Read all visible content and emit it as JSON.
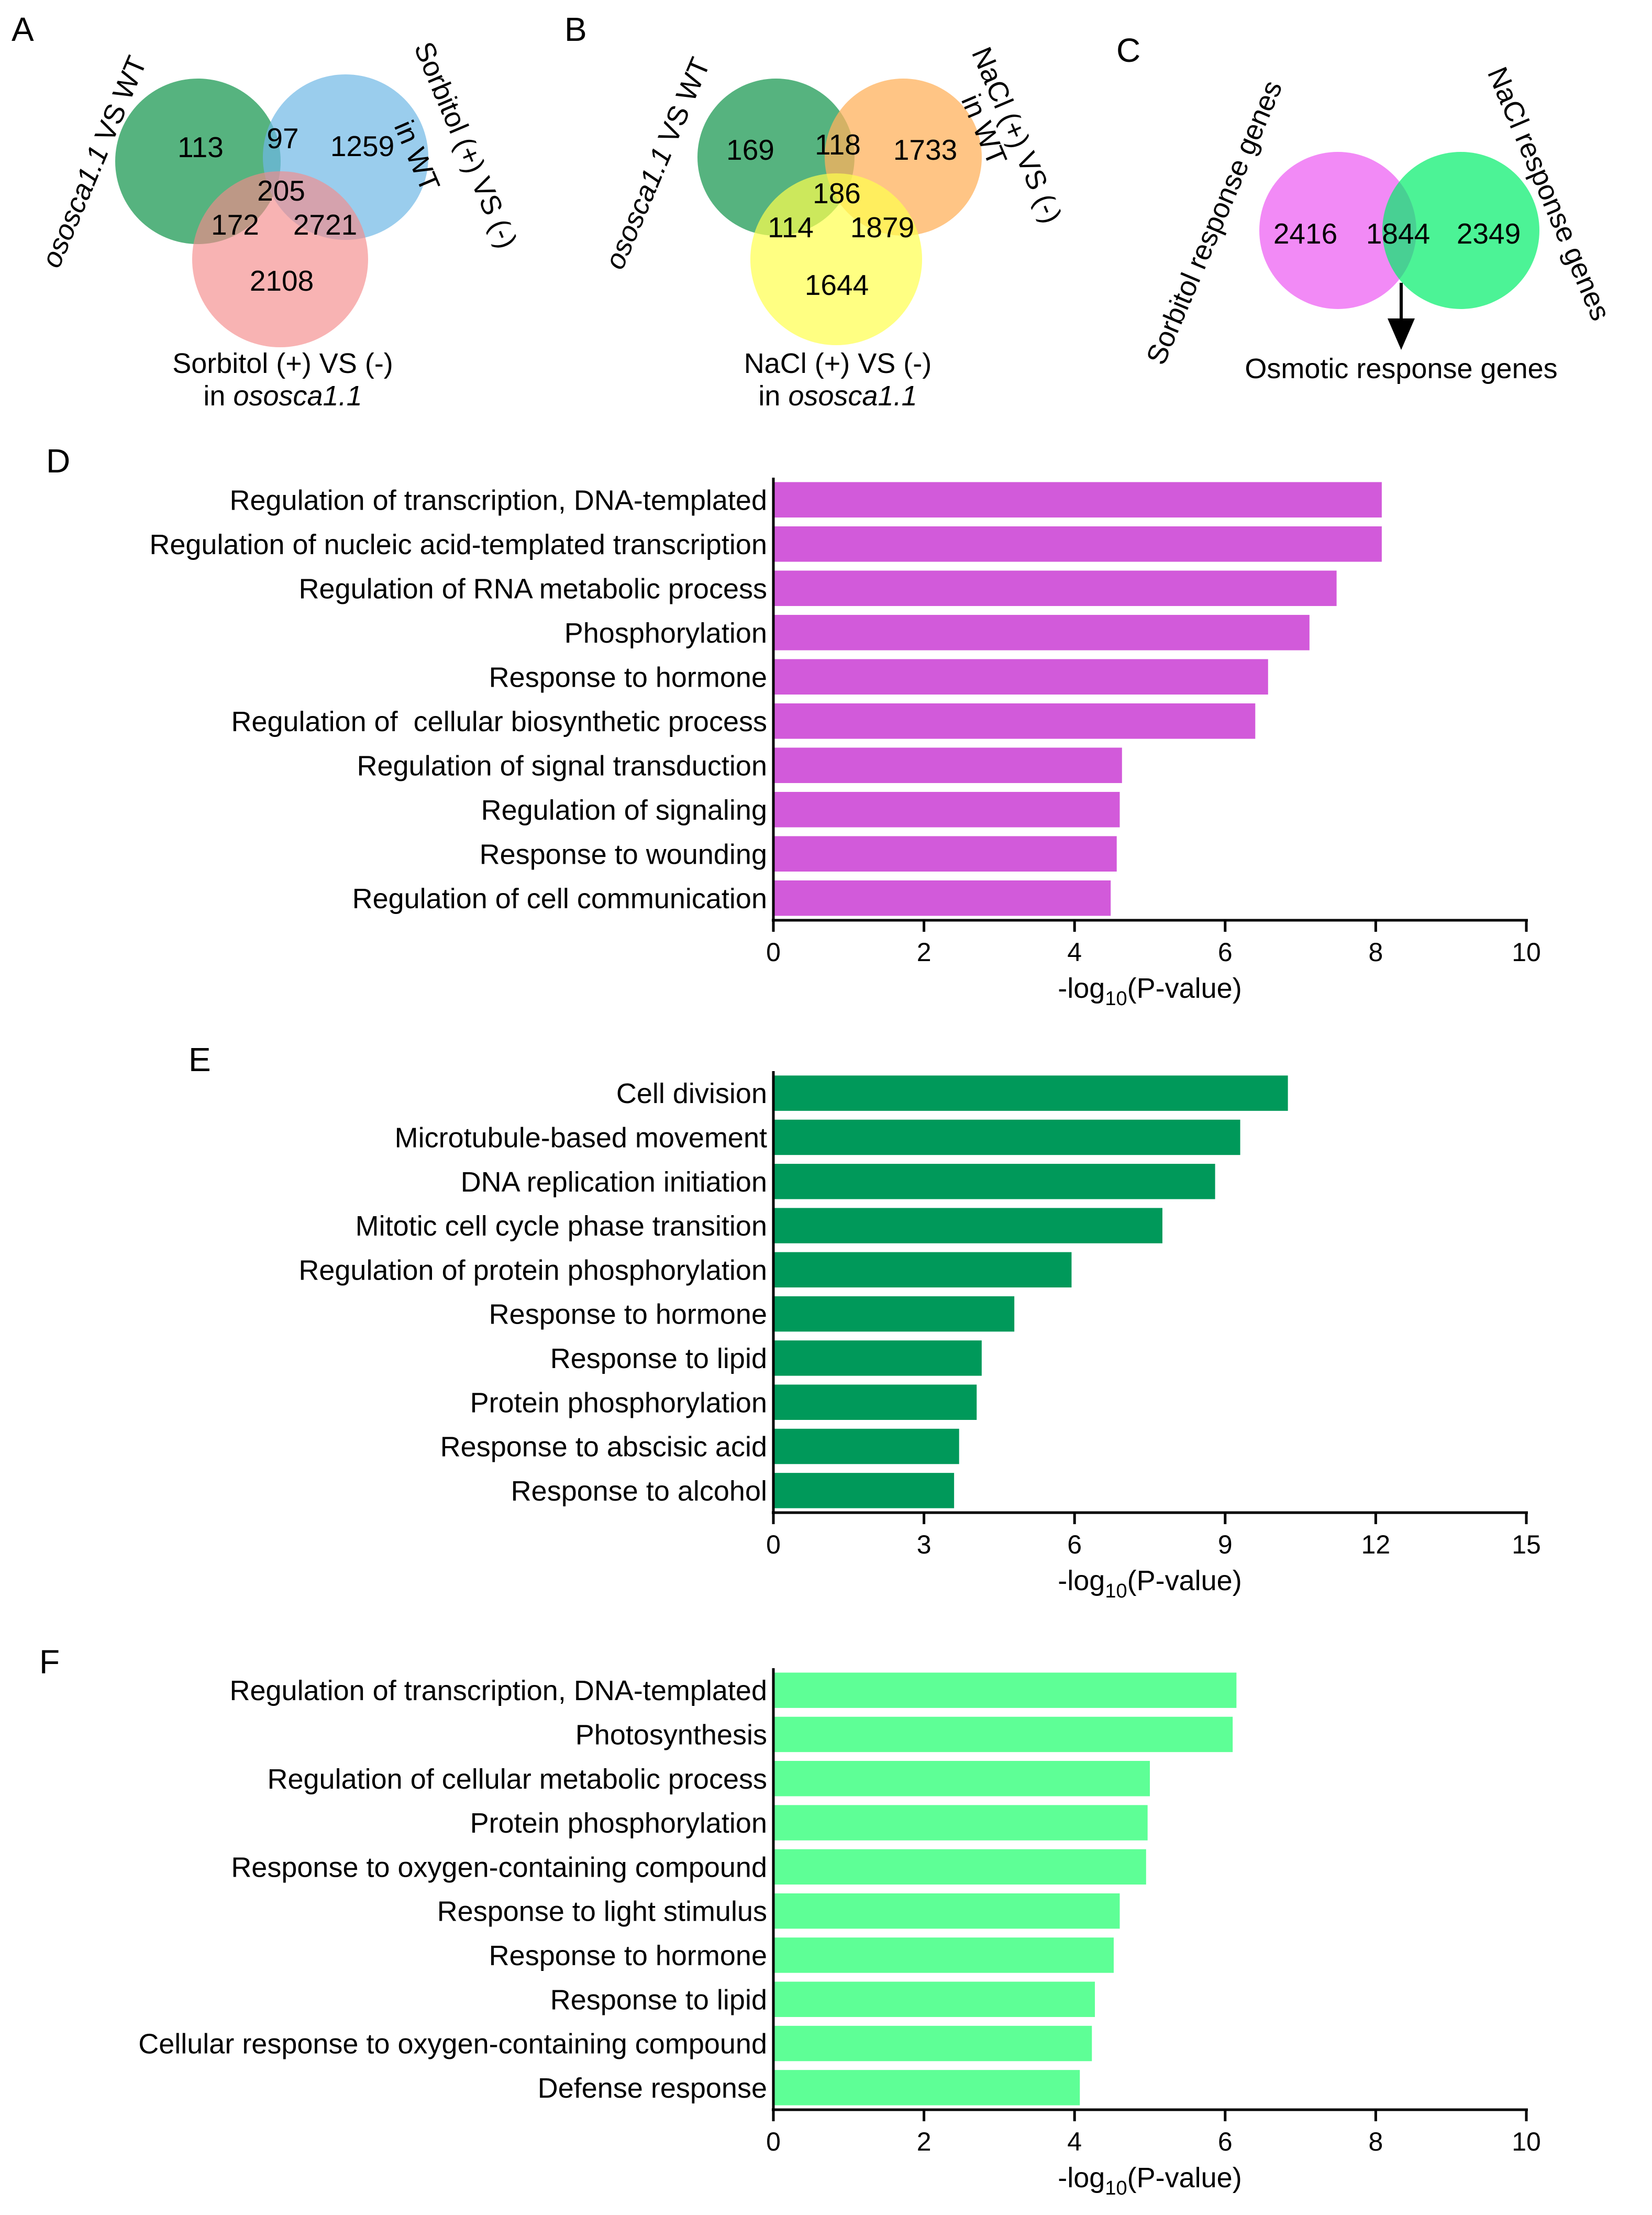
{
  "venn": {
    "A": {
      "label": "A",
      "sets": [
        {
          "name": "ososca1.1 VS WT",
          "color": "#1e9a54"
        },
        {
          "name": "Sorbitol (+) VS (-) in WT",
          "color": "#6fb8e6"
        },
        {
          "name": "Sorbitol (+) VS (-) in ososca1.1",
          "color": "#f58b8b"
        }
      ],
      "counts": {
        "only1": "113",
        "s12": "97",
        "only2": "1259",
        "s123": "205",
        "s13": "172",
        "s23": "2721",
        "only3": "2108"
      },
      "captions": {
        "set1_italic": "ososca1.1",
        "set1_rest": " VS WT",
        "set2_line1": "Sorbitol (+) VS (-)",
        "set2_line2": "in WT",
        "set3_line1": "Sorbitol (+) VS (-)",
        "set3_prefix": "in ",
        "set3_italic": "ososca1.1"
      }
    },
    "B": {
      "label": "B",
      "sets": [
        {
          "name": "ososca1.1 VS WT",
          "color": "#1e9a54"
        },
        {
          "name": "NaCl (+) VS (-) in WT",
          "color": "#ffb15c"
        },
        {
          "name": "NaCl (+) VS (-) in ososca1.1",
          "color": "#ffff4d"
        }
      ],
      "counts": {
        "only1": "169",
        "s12": "118",
        "only2": "1733",
        "s123": "186",
        "s13": "114",
        "s23": "1879",
        "only3": "1644"
      },
      "captions": {
        "set1_italic": "ososca1.1",
        "set1_rest": " VS WT",
        "set2_line1": "NaCl (+) VS (-)",
        "set2_line2": "in WT",
        "set3_line1": "NaCl (+) VS (-)",
        "set3_prefix": "in ",
        "set3_italic": "ososca1.1"
      }
    },
    "C": {
      "label": "C",
      "sets": [
        {
          "name": "Sorbitol response genes",
          "color": "#f075f5"
        },
        {
          "name": "NaCl response genes",
          "color": "#00ee6a"
        }
      ],
      "counts": {
        "only1": "2416",
        "s12": "1844",
        "only2": "2349"
      },
      "captions": {
        "set1": "Sorbitol response genes",
        "set2": "NaCl response genes",
        "arrow": "Osmotic response genes"
      }
    }
  },
  "chart_data": [
    {
      "panel": "D",
      "type": "bar",
      "orientation": "horizontal",
      "color": "#d25ada",
      "xlabel_pre": "-log",
      "xlabel_sub": "10",
      "xlabel_post": "(P-value)",
      "xlim": [
        0,
        10
      ],
      "xticks": [
        0,
        2,
        4,
        6,
        8,
        10
      ],
      "categories": [
        "Regulation of transcription, DNA-templated",
        "Regulation of nucleic acid-templated transcription",
        "Regulation of RNA metabolic process",
        "Phosphorylation",
        "Response to hormone",
        "Regulation of  cellular biosynthetic process",
        "Regulation of signal transduction",
        "Regulation of signaling",
        "Response to wounding",
        "Regulation of cell communication"
      ],
      "values": [
        8.08,
        8.08,
        7.48,
        7.12,
        6.57,
        6.4,
        4.63,
        4.6,
        4.56,
        4.48
      ]
    },
    {
      "panel": "E",
      "type": "bar",
      "orientation": "horizontal",
      "color": "#00995a",
      "xlabel_pre": "-log",
      "xlabel_sub": "10",
      "xlabel_post": "(P-value)",
      "xlim": [
        0,
        15
      ],
      "xticks": [
        0,
        3,
        6,
        9,
        12,
        15
      ],
      "categories": [
        "Cell division",
        "Microtubule-based movement",
        "DNA replication initiation",
        "Mitotic cell cycle phase transition",
        "Regulation of protein phosphorylation",
        "Response to hormone",
        "Response to lipid",
        "Protein phosphorylation",
        "Response to abscisic acid",
        "Response to alcohol"
      ],
      "values": [
        10.25,
        9.3,
        8.8,
        7.75,
        5.94,
        4.8,
        4.15,
        4.05,
        3.7,
        3.6
      ]
    },
    {
      "panel": "F",
      "type": "bar",
      "orientation": "horizontal",
      "color": "#5eff96",
      "xlabel_pre": "-log",
      "xlabel_sub": "10",
      "xlabel_post": "(P-value)",
      "xlim": [
        0,
        10
      ],
      "xticks": [
        0,
        2,
        4,
        6,
        8,
        10
      ],
      "categories": [
        "Regulation of transcription, DNA-templated",
        "Photosynthesis",
        "Regulation of cellular metabolic process",
        "Protein phosphorylation",
        "Response to oxygen-containing compound",
        "Response to light stimulus",
        "Response to hormone",
        "Response to lipid",
        "Cellular response to oxygen-containing compound",
        "Defense response"
      ],
      "values": [
        6.15,
        6.1,
        5.0,
        4.97,
        4.95,
        4.6,
        4.52,
        4.27,
        4.23,
        4.07
      ]
    }
  ]
}
